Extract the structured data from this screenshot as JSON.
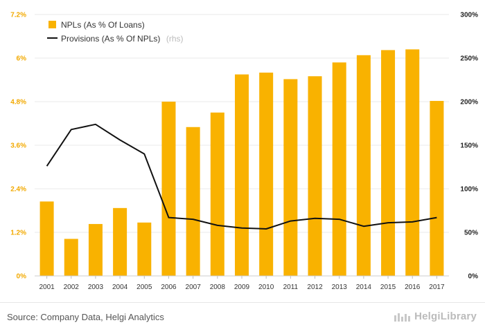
{
  "chart_data": {
    "type": "bar",
    "categories": [
      "2001",
      "2002",
      "2003",
      "2004",
      "2005",
      "2006",
      "2007",
      "2008",
      "2009",
      "2010",
      "2011",
      "2012",
      "2013",
      "2014",
      "2015",
      "2016",
      "2017"
    ],
    "series": [
      {
        "name": "NPLs (As % Of Loans)",
        "type": "bar",
        "axis": "left",
        "color": "#f9b200",
        "values": [
          2.05,
          1.02,
          1.43,
          1.87,
          1.47,
          4.8,
          4.1,
          4.5,
          5.55,
          5.6,
          5.42,
          5.5,
          5.88,
          6.08,
          6.22,
          6.24,
          4.82
        ]
      },
      {
        "name": "Provisions (As % Of NPLs)",
        "note": "(rhs)",
        "type": "line",
        "axis": "right",
        "color": "#111111",
        "values": [
          126,
          168,
          174,
          156,
          140,
          67,
          65,
          58,
          55,
          54,
          63,
          66,
          65,
          57,
          61,
          62,
          67
        ]
      }
    ],
    "y_left": {
      "min": 0,
      "max": 7.2,
      "ticks": [
        "0%",
        "1.2%",
        "2.4%",
        "3.6%",
        "4.8%",
        "6%",
        "7.2%"
      ]
    },
    "y_right": {
      "min": 0,
      "max": 300,
      "ticks": [
        "0%",
        "50%",
        "100%",
        "150%",
        "200%",
        "250%",
        "300%"
      ]
    },
    "grid": true,
    "legend_position": "top-left"
  },
  "footer": {
    "source": "Source: Company Data, Helgi Analytics",
    "brand": "HelgiLibrary"
  },
  "colors": {
    "bar": "#f9b200",
    "line": "#111111",
    "left_axis_text": "#f2a900",
    "grid": "#e8e8e8"
  }
}
